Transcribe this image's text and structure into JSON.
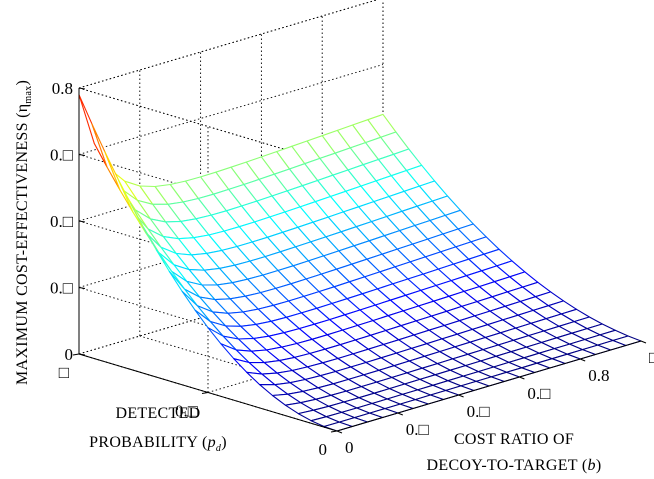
{
  "chart_data": {
    "type": "surface",
    "title": "",
    "zlabel": {
      "text": "MAXIMUM COST-EFFECTIVENESS (η",
      "sub": "max",
      "close": ")"
    },
    "xlabel": {
      "line1": "COST RATIO OF",
      "line2_pre": "DECOY-TO-TARGET (",
      "line2_var": "b",
      "line2_post": ")"
    },
    "ylabel": {
      "line1": "DETECTED",
      "line2_pre": "PROBABILITY (",
      "line2_var": "p",
      "line2_sub": "d",
      "line2_post": ")"
    },
    "x_axis": {
      "name": "b",
      "range": [
        0,
        1
      ],
      "ticks": [
        0,
        0.2,
        0.4,
        0.6,
        0.8,
        1
      ],
      "tick_labels": [
        "0",
        "0.□",
        "0.□",
        "0.□",
        "0.8",
        "□"
      ]
    },
    "y_axis": {
      "name": "p_d",
      "range": [
        0,
        1
      ],
      "ticks": [
        0,
        0.5,
        1
      ],
      "tick_labels": [
        "0",
        "0.□",
        "□"
      ]
    },
    "z_axis": {
      "name": "eta_max",
      "range": [
        0,
        0.8
      ],
      "ticks": [
        0,
        0.2,
        0.4,
        0.6,
        0.8
      ],
      "tick_labels": [
        "0",
        "0.□",
        "0.□",
        "0.□",
        "0.8"
      ]
    },
    "grid": true,
    "colormap": "jet",
    "mesh": {
      "nx": 21,
      "ny": 21
    },
    "sample_points": [
      {
        "b": 0,
        "p_d": 1,
        "eta_max": 0.78
      },
      {
        "b": 0.25,
        "p_d": 1,
        "eta_max": 0.47
      },
      {
        "b": 1,
        "p_d": 1,
        "eta_max": 0.45
      },
      {
        "b": 1,
        "p_d": 0.5,
        "eta_max": 0.23
      },
      {
        "b": 0,
        "p_d": 0.5,
        "eta_max": 0.05
      },
      {
        "b": 1,
        "p_d": 0,
        "eta_max": 0.0
      },
      {
        "b": 0,
        "p_d": 0,
        "eta_max": 0.0
      }
    ]
  }
}
